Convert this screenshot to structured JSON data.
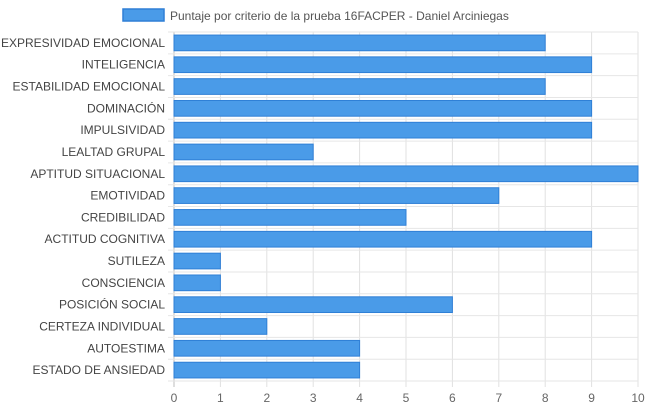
{
  "chart_data": {
    "type": "bar",
    "orientation": "horizontal",
    "title": "",
    "legend_position": "top",
    "grid": true,
    "xlim": [
      0,
      10
    ],
    "x_ticks": [
      0,
      1,
      2,
      3,
      4,
      5,
      6,
      7,
      8,
      9,
      10
    ],
    "bar_color": "#4a9be8",
    "bar_border_color": "#2f7fd6",
    "categories": [
      "EXPRESIVIDAD EMOCIONAL",
      "INTELIGENCIA",
      "ESTABILIDAD EMOCIONAL",
      "DOMINACIÓN",
      "IMPULSIVIDAD",
      "LEALTAD GRUPAL",
      "APTITUD SITUACIONAL",
      "EMOTIVIDAD",
      "CREDIBILIDAD",
      "ACTITUD COGNITIVA",
      "SUTILEZA",
      "CONSCIENCIA",
      "POSICIÓN SOCIAL",
      "CERTEZA INDIVIDUAL",
      "AUTOESTIMA",
      "ESTADO DE ANSIEDAD"
    ],
    "series": [
      {
        "name": "Puntaje por criterio de la prueba 16FACPER - Daniel Arciniegas",
        "values": [
          8,
          9,
          8,
          9,
          9,
          3,
          10,
          7,
          5,
          9,
          1,
          1,
          6,
          2,
          4,
          4
        ]
      }
    ]
  }
}
